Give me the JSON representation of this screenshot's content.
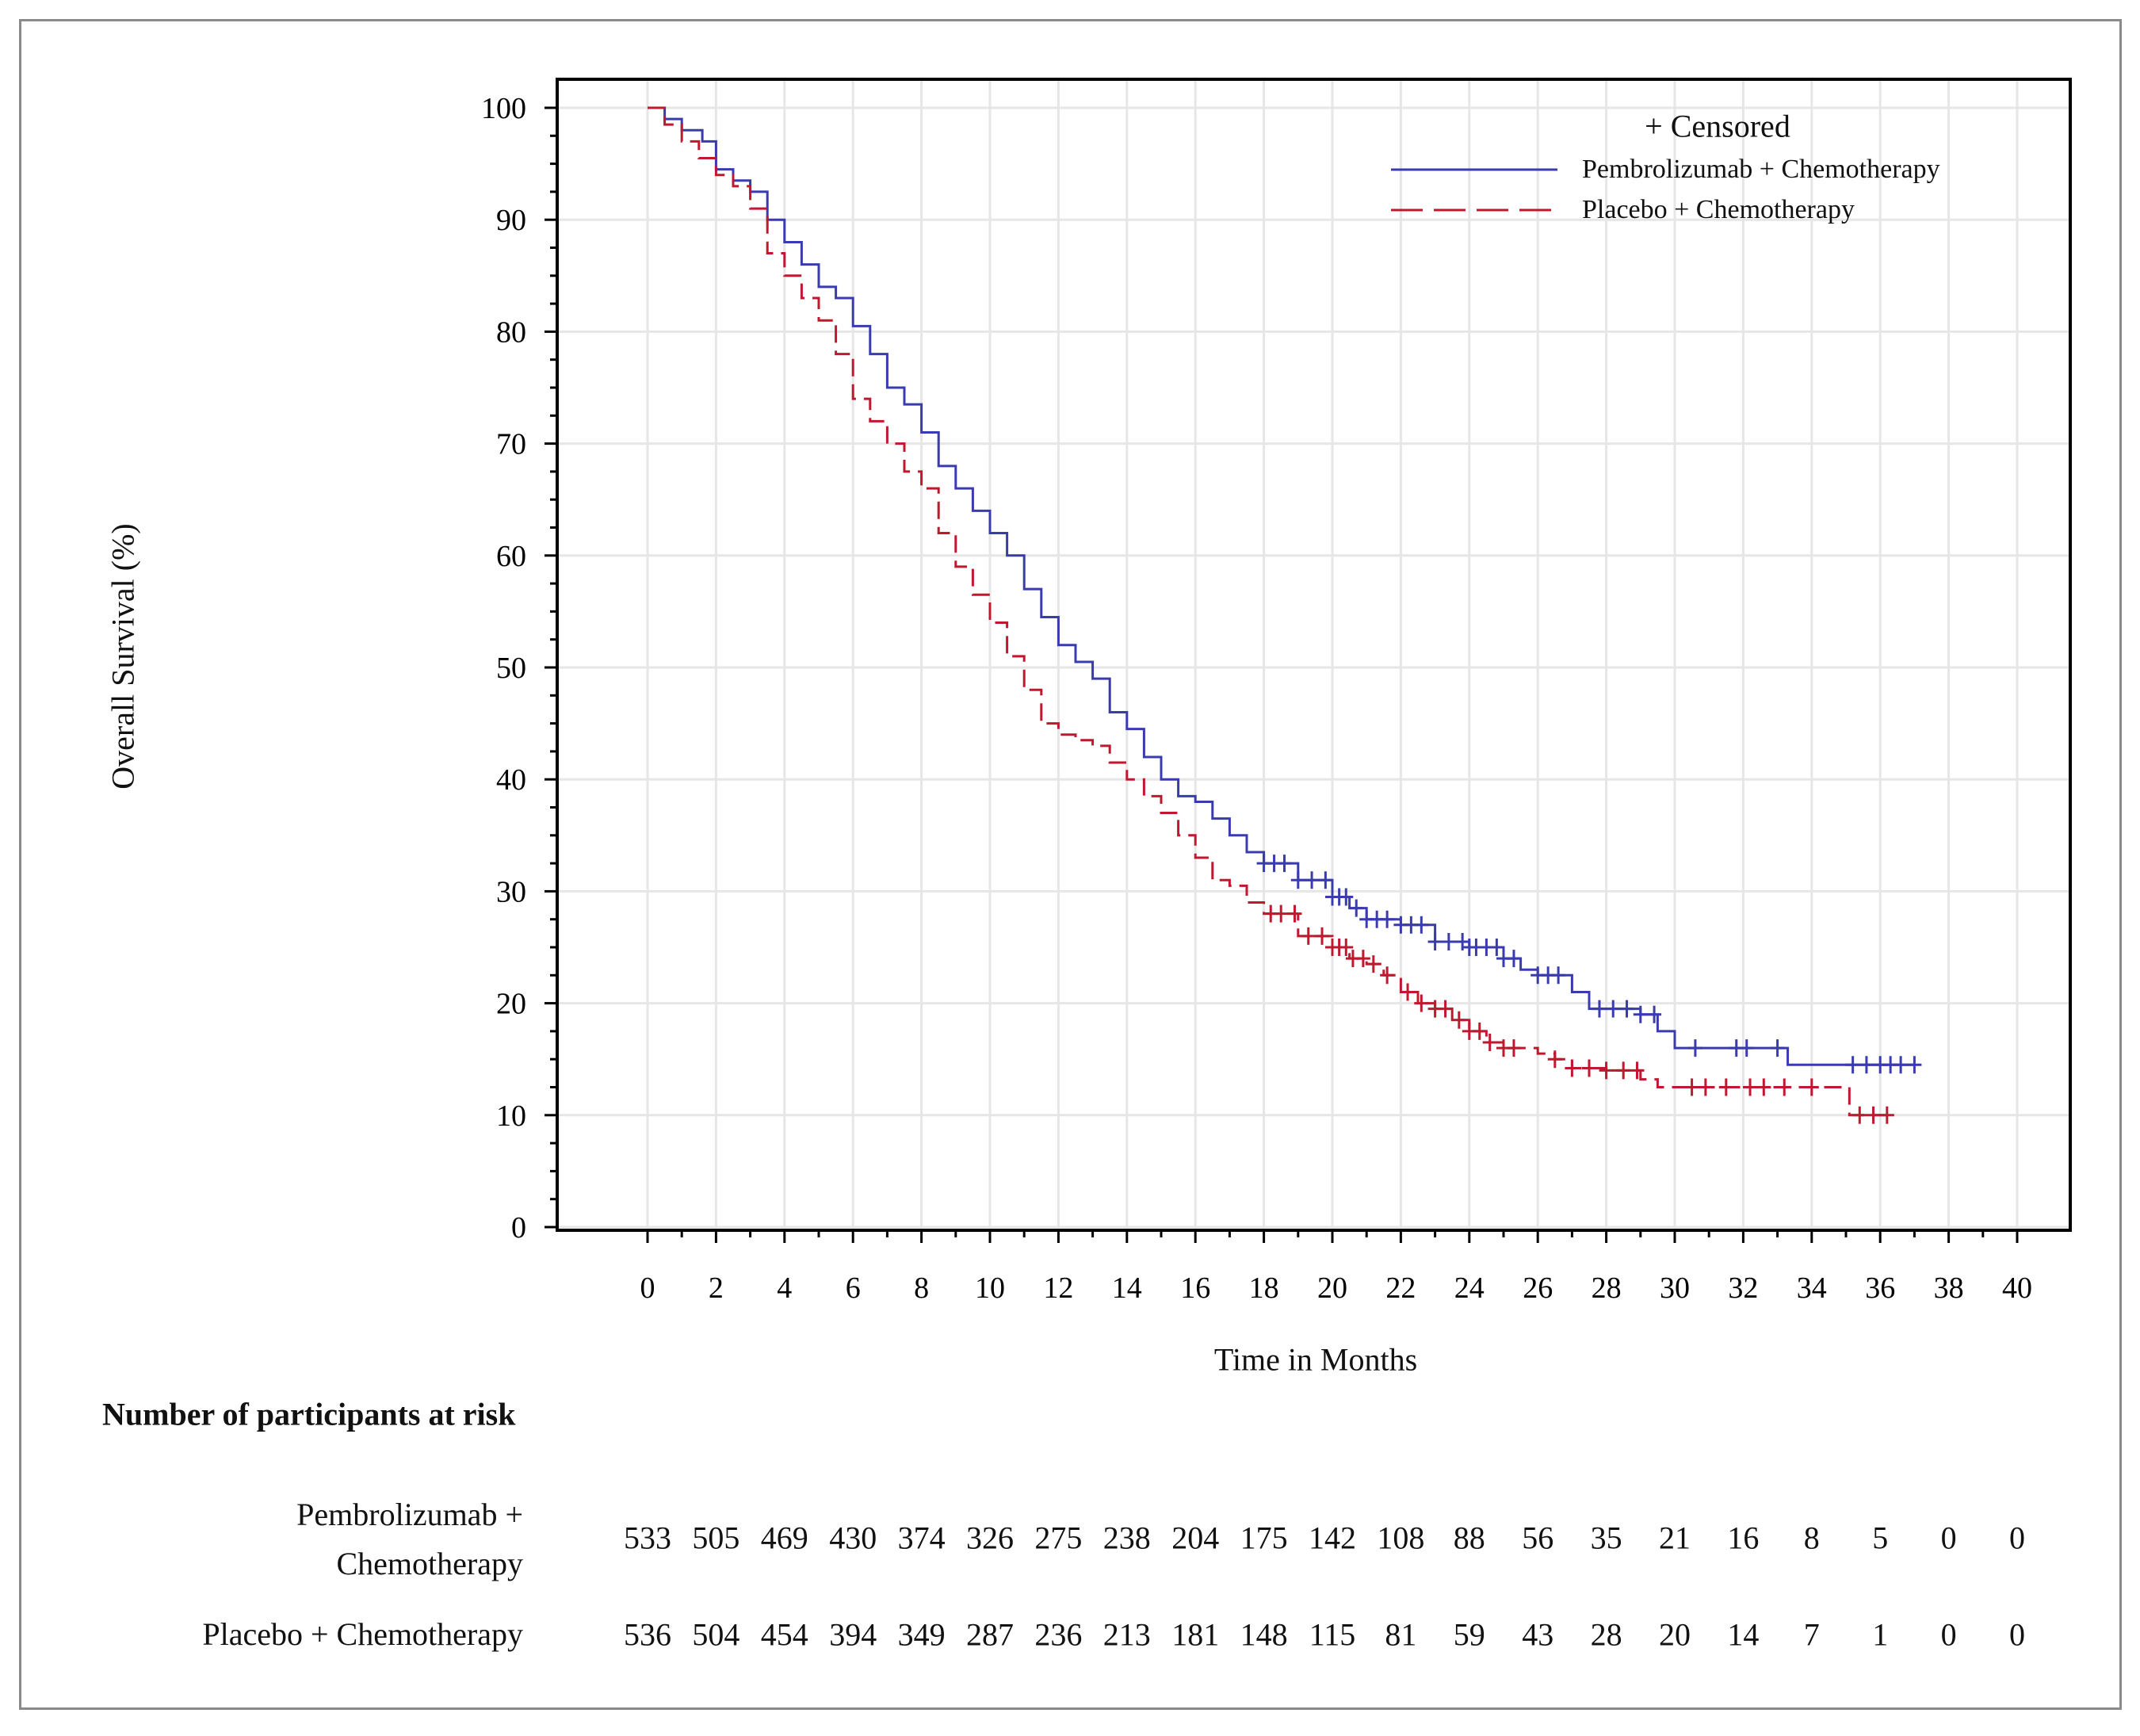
{
  "chart_data": {
    "type": "line",
    "subtype": "kaplan-meier",
    "xlabel": "Time in Months",
    "ylabel": "Overall Survival (%)",
    "xlim": [
      0,
      40
    ],
    "ylim": [
      0,
      100
    ],
    "xticks": [
      0,
      2,
      4,
      6,
      8,
      10,
      12,
      14,
      16,
      18,
      20,
      22,
      24,
      26,
      28,
      30,
      32,
      34,
      36,
      38,
      40
    ],
    "yticks": [
      0,
      10,
      20,
      30,
      40,
      50,
      60,
      70,
      80,
      90,
      100
    ],
    "grid": true,
    "legend": {
      "placement": "top-right",
      "censored_label": "+ Censored",
      "entries": [
        "Pembrolizumab + Chemotherapy",
        "Placebo + Chemotherapy"
      ]
    },
    "series": [
      {
        "name": "Pembrolizumab + Chemotherapy",
        "color": "#3b3bb0",
        "line_style": "solid",
        "points": [
          [
            0,
            100
          ],
          [
            0.5,
            99
          ],
          [
            1,
            98
          ],
          [
            1.6,
            97
          ],
          [
            2,
            94.5
          ],
          [
            2.5,
            93.5
          ],
          [
            3,
            92.5
          ],
          [
            3.5,
            90
          ],
          [
            4,
            88
          ],
          [
            4.5,
            86
          ],
          [
            5,
            84
          ],
          [
            5.5,
            83
          ],
          [
            6,
            80.5
          ],
          [
            6.5,
            78
          ],
          [
            7,
            75
          ],
          [
            7.5,
            73.5
          ],
          [
            8,
            71
          ],
          [
            8.5,
            68
          ],
          [
            9,
            66
          ],
          [
            9.5,
            64
          ],
          [
            10,
            62
          ],
          [
            10.5,
            60
          ],
          [
            11,
            57
          ],
          [
            11.5,
            54.5
          ],
          [
            12,
            52
          ],
          [
            12.5,
            50.5
          ],
          [
            13,
            49
          ],
          [
            13.5,
            46
          ],
          [
            14,
            44.5
          ],
          [
            14.5,
            42
          ],
          [
            15,
            40
          ],
          [
            15.5,
            38.5
          ],
          [
            16,
            38
          ],
          [
            16.5,
            36.5
          ],
          [
            17,
            35
          ],
          [
            17.5,
            33.5
          ],
          [
            18,
            32.5
          ],
          [
            19,
            31
          ],
          [
            20,
            29.5
          ],
          [
            20.5,
            28.5
          ],
          [
            21,
            27.5
          ],
          [
            22,
            27
          ],
          [
            23,
            25.5
          ],
          [
            24,
            25
          ],
          [
            25,
            24
          ],
          [
            25.5,
            23
          ],
          [
            26,
            22.5
          ],
          [
            27,
            21
          ],
          [
            27.5,
            19.5
          ],
          [
            29,
            19
          ],
          [
            29.5,
            17.5
          ],
          [
            30,
            16
          ],
          [
            33.2,
            16
          ],
          [
            33.3,
            14.5
          ],
          [
            37,
            14.5
          ]
        ],
        "censored": [
          18,
          18.3,
          18.6,
          19,
          19.4,
          19.8,
          20,
          20.2,
          20.4,
          20.7,
          21,
          21.3,
          21.6,
          22,
          22.3,
          22.6,
          23,
          23.4,
          23.8,
          24,
          24.2,
          24.5,
          24.8,
          25,
          25.3,
          26,
          26.3,
          26.6,
          27.8,
          28.2,
          28.6,
          29,
          29.4,
          30.6,
          31.8,
          32.1,
          33,
          35.2,
          35.6,
          36,
          36.3,
          36.6,
          37
        ]
      },
      {
        "name": "Placebo + Chemotherapy",
        "color": "#c0182f",
        "line_style": "dashed",
        "points": [
          [
            0,
            100
          ],
          [
            0.5,
            98.5
          ],
          [
            1,
            97
          ],
          [
            1.5,
            95.5
          ],
          [
            2,
            94
          ],
          [
            2.5,
            93
          ],
          [
            3,
            91
          ],
          [
            3.5,
            87
          ],
          [
            4,
            85
          ],
          [
            4.5,
            83
          ],
          [
            5,
            81
          ],
          [
            5.5,
            78
          ],
          [
            6,
            74
          ],
          [
            6.5,
            72
          ],
          [
            7,
            70
          ],
          [
            7.5,
            67.5
          ],
          [
            8,
            66
          ],
          [
            8.5,
            62
          ],
          [
            9,
            59
          ],
          [
            9.5,
            56.5
          ],
          [
            10,
            54
          ],
          [
            10.5,
            51
          ],
          [
            11,
            48
          ],
          [
            11.5,
            45
          ],
          [
            12,
            44
          ],
          [
            12.5,
            43.5
          ],
          [
            13,
            43
          ],
          [
            13.5,
            41.5
          ],
          [
            14,
            40
          ],
          [
            14.5,
            38.5
          ],
          [
            15,
            37
          ],
          [
            15.5,
            35
          ],
          [
            16,
            33
          ],
          [
            16.5,
            31
          ],
          [
            17,
            30.5
          ],
          [
            17.5,
            29
          ],
          [
            18,
            28
          ],
          [
            19,
            26
          ],
          [
            20,
            25
          ],
          [
            20.5,
            24
          ],
          [
            21,
            23.5
          ],
          [
            21.5,
            22.5
          ],
          [
            22,
            21
          ],
          [
            22.5,
            20
          ],
          [
            23,
            19.5
          ],
          [
            23.5,
            18.5
          ],
          [
            24,
            17.5
          ],
          [
            24.5,
            16.5
          ],
          [
            25,
            16
          ],
          [
            26,
            15.5
          ],
          [
            26.5,
            15
          ],
          [
            27,
            14.2
          ],
          [
            28,
            14
          ],
          [
            29,
            13.2
          ],
          [
            29.5,
            12.5
          ],
          [
            35,
            12.5
          ],
          [
            35.1,
            10
          ],
          [
            36.2,
            10
          ]
        ],
        "censored": [
          18.2,
          18.5,
          18.9,
          19.3,
          19.7,
          20,
          20.2,
          20.4,
          20.6,
          20.9,
          21.2,
          21.6,
          22.2,
          22.6,
          23,
          23.3,
          23.7,
          24,
          24.3,
          24.6,
          25,
          25.3,
          26.5,
          27,
          27.5,
          28,
          28.5,
          28.9,
          30.5,
          30.9,
          31.5,
          32.2,
          32.6,
          33.2,
          34,
          35.4,
          35.8,
          36.2
        ]
      }
    ],
    "risk_table": {
      "title": "Number of participants at risk",
      "times": [
        0,
        2,
        4,
        6,
        8,
        10,
        12,
        14,
        16,
        18,
        20,
        22,
        24,
        26,
        28,
        30,
        32,
        34,
        36,
        38,
        40
      ],
      "rows": [
        {
          "label_line1": "Pembrolizumab +",
          "label_line2": "Chemotherapy",
          "values": [
            "533",
            "505",
            "469",
            "430",
            "374",
            "326",
            "275",
            "238",
            "204",
            "175",
            "142",
            "108",
            "88",
            "56",
            "35",
            "21",
            "16",
            "8",
            "5",
            "0",
            "0"
          ]
        },
        {
          "label_line1": "Placebo + Chemotherapy",
          "label_line2": "",
          "values": [
            "536",
            "504",
            "454",
            "394",
            "349",
            "287",
            "236",
            "213",
            "181",
            "148",
            "115",
            "81",
            "59",
            "43",
            "28",
            "20",
            "14",
            "7",
            "1",
            "0",
            "0"
          ]
        }
      ]
    }
  }
}
